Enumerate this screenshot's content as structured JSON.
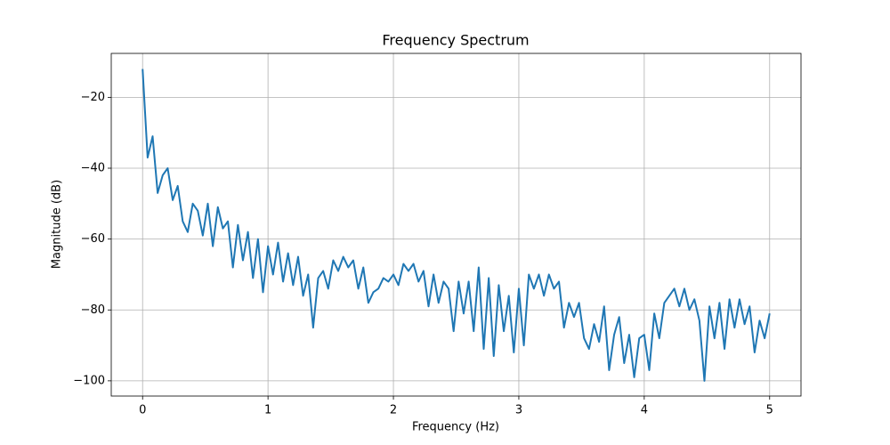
{
  "chart_data": {
    "type": "line",
    "title": "Frequency Spectrum",
    "x_label": "Frequency (Hz)",
    "y_label": "Magnitude (dB)",
    "x": [
      0,
      0.04,
      0.08,
      0.12,
      0.16,
      0.2,
      0.24,
      0.28,
      0.32,
      0.36,
      0.4,
      0.44,
      0.48,
      0.52,
      0.56,
      0.6,
      0.64,
      0.68,
      0.72,
      0.76,
      0.8,
      0.84,
      0.88,
      0.92,
      0.96,
      1.0,
      1.04,
      1.08,
      1.12,
      1.16,
      1.2,
      1.24,
      1.28,
      1.32,
      1.36,
      1.4,
      1.44,
      1.48,
      1.52,
      1.56,
      1.6,
      1.64,
      1.68,
      1.72,
      1.76,
      1.8,
      1.84,
      1.88,
      1.92,
      1.96,
      2.0,
      2.04,
      2.08,
      2.12,
      2.16,
      2.2,
      2.24,
      2.28,
      2.32,
      2.36,
      2.4,
      2.44,
      2.48,
      2.52,
      2.56,
      2.6,
      2.64,
      2.68,
      2.72,
      2.76,
      2.8,
      2.84,
      2.88,
      2.92,
      2.96,
      3.0,
      3.04,
      3.08,
      3.12,
      3.16,
      3.2,
      3.24,
      3.28,
      3.32,
      3.36,
      3.4,
      3.44,
      3.48,
      3.52,
      3.56,
      3.6,
      3.64,
      3.68,
      3.72,
      3.76,
      3.8,
      3.84,
      3.88,
      3.92,
      3.96,
      4.0,
      4.04,
      4.08,
      4.12,
      4.16,
      4.2,
      4.24,
      4.28,
      4.32,
      4.36,
      4.4,
      4.44,
      4.48,
      4.52,
      4.56,
      4.6,
      4.64,
      4.68,
      4.72,
      4.76,
      4.8,
      4.84,
      4.88,
      4.92,
      4.96,
      5.0
    ],
    "series": [
      {
        "color": "#1f77b4",
        "values": [
          -12,
          -37,
          -31,
          -47,
          -42,
          -40,
          -49,
          -45,
          -55,
          -58,
          -50,
          -52,
          -59,
          -50,
          -62,
          -51,
          -57,
          -55,
          -68,
          -56,
          -66,
          -58,
          -71,
          -60,
          -75,
          -62,
          -70,
          -61,
          -72,
          -64,
          -73,
          -65,
          -76,
          -70,
          -85,
          -71,
          -69,
          -74,
          -66,
          -69,
          -65,
          -68,
          -66,
          -74,
          -68,
          -78,
          -75,
          -74,
          -71,
          -72,
          -70,
          -73,
          -67,
          -69,
          -67,
          -72,
          -69,
          -79,
          -70,
          -78,
          -72,
          -74,
          -86,
          -72,
          -81,
          -72,
          -86,
          -68,
          -91,
          -71,
          -93,
          -73,
          -86,
          -76,
          -92,
          -74,
          -90,
          -70,
          -74,
          -70,
          -76,
          -70,
          -74,
          -72,
          -85,
          -78,
          -82,
          -78,
          -88,
          -91,
          -84,
          -89,
          -79,
          -97,
          -87,
          -82,
          -95,
          -87,
          -99,
          -88,
          -87,
          -97,
          -81,
          -88,
          -78,
          -76,
          -74,
          -79,
          -74,
          -80,
          -77,
          -83,
          -100,
          -79,
          -88,
          -78,
          -91,
          -77,
          -85,
          -77,
          -84,
          -79,
          -92,
          -83,
          -88,
          -81
        ]
      }
    ],
    "xlim": [
      -0.25,
      5.25
    ],
    "ylim": [
      -104.3,
      -7.6
    ],
    "xticks": [
      0,
      1,
      2,
      3,
      4,
      5
    ],
    "yticks": [
      {
        "value": -100,
        "label": "−100"
      },
      {
        "value": -80,
        "label": "−80"
      },
      {
        "value": -60,
        "label": "−60"
      },
      {
        "value": -40,
        "label": "−40"
      },
      {
        "value": -20,
        "label": "−20"
      }
    ],
    "grid": true
  }
}
